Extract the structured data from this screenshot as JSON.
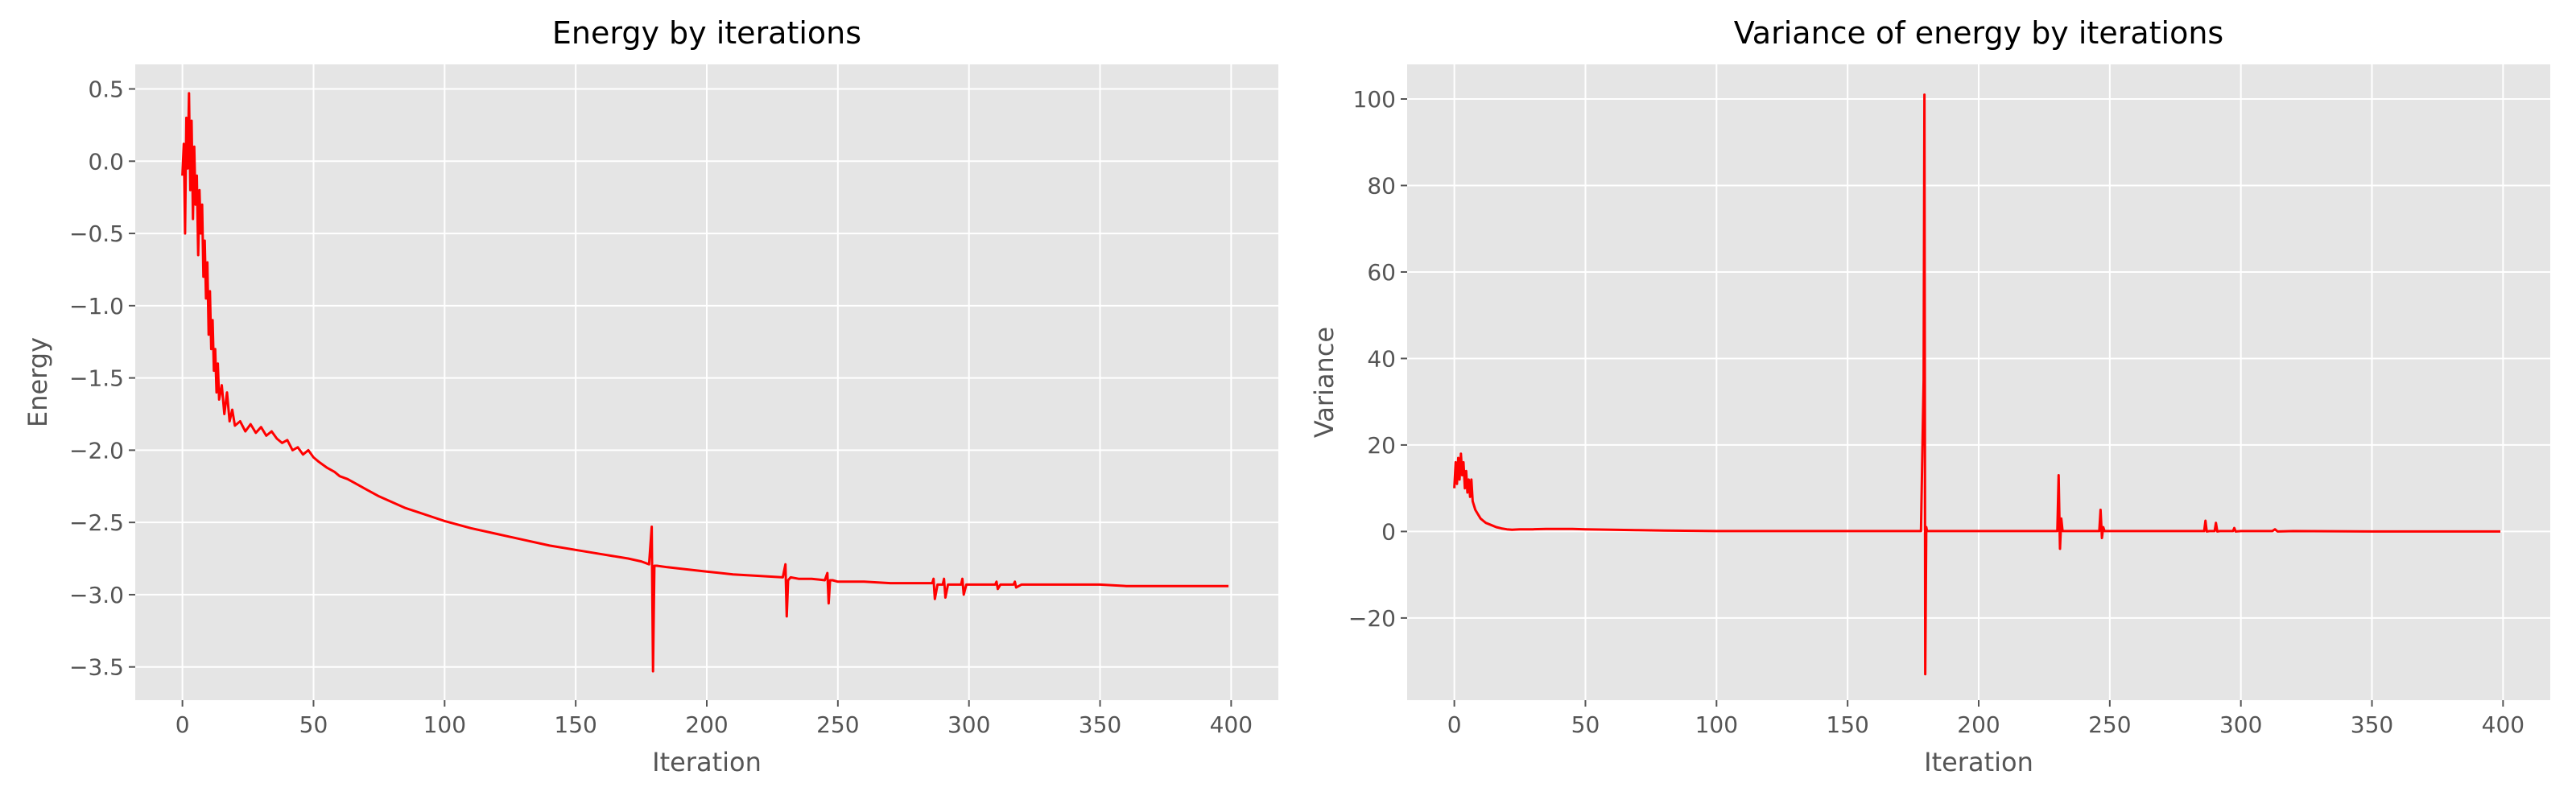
{
  "chart_data": [
    {
      "type": "line",
      "title": "Energy by iterations",
      "xlabel": "Iteration",
      "ylabel": "Energy",
      "xlim": [
        -18,
        418
      ],
      "ylim": [
        -3.73,
        0.67
      ],
      "xticks": [
        0,
        50,
        100,
        150,
        200,
        250,
        300,
        350,
        400
      ],
      "yticks": [
        -3.5,
        -3.0,
        -2.5,
        -2.0,
        -1.5,
        -1.0,
        -0.5,
        0.0,
        0.5
      ],
      "ytick_labels": [
        "−3.5",
        "−3.0",
        "−2.5",
        "−2.0",
        "−1.5",
        "−1.0",
        "−0.5",
        "0.0",
        "0.5"
      ],
      "grid": true,
      "series_color": "#ff0000",
      "series": [
        {
          "x": [
            0,
            0.5,
            1,
            1.5,
            2,
            2.5,
            3,
            3.5,
            4,
            4.5,
            5,
            5.5,
            6,
            6.5,
            7,
            7.5,
            8,
            8.5,
            9,
            9.5,
            10,
            10.5,
            11,
            11.5,
            12,
            12.5,
            13,
            13.5,
            14,
            15,
            16,
            17,
            18,
            19,
            20,
            22,
            24,
            26,
            28,
            30,
            32,
            34,
            36,
            38,
            40,
            42,
            44,
            46,
            48,
            50,
            52,
            55,
            58,
            60,
            63,
            66,
            70,
            75,
            80,
            85,
            90,
            95,
            100,
            110,
            120,
            130,
            140,
            150,
            160,
            170,
            175,
            178,
            179,
            179.5,
            180,
            181,
            185,
            190,
            200,
            210,
            220,
            229,
            230,
            230.5,
            231,
            232,
            235,
            240,
            245,
            246,
            246.5,
            247,
            248,
            250,
            260,
            270,
            280,
            286,
            286.5,
            287,
            288,
            290,
            290.5,
            291,
            292,
            297,
            297.5,
            298,
            299,
            300,
            310,
            310.5,
            311,
            312,
            317,
            317.5,
            318,
            320,
            330,
            340,
            350,
            360,
            370,
            380,
            390,
            399
          ],
          "y": [
            -0.1,
            0.12,
            -0.5,
            0.3,
            -0.05,
            0.47,
            -0.2,
            0.28,
            -0.4,
            0.1,
            -0.3,
            -0.1,
            -0.65,
            -0.2,
            -0.5,
            -0.3,
            -0.8,
            -0.55,
            -0.95,
            -0.7,
            -1.2,
            -0.9,
            -1.3,
            -1.1,
            -1.45,
            -1.3,
            -1.6,
            -1.4,
            -1.65,
            -1.55,
            -1.75,
            -1.6,
            -1.8,
            -1.72,
            -1.83,
            -1.8,
            -1.87,
            -1.82,
            -1.88,
            -1.84,
            -1.9,
            -1.87,
            -1.92,
            -1.95,
            -1.93,
            -2.0,
            -1.98,
            -2.03,
            -2.0,
            -2.05,
            -2.08,
            -2.12,
            -2.15,
            -2.18,
            -2.2,
            -2.23,
            -2.27,
            -2.32,
            -2.36,
            -2.4,
            -2.43,
            -2.46,
            -2.49,
            -2.54,
            -2.58,
            -2.62,
            -2.66,
            -2.69,
            -2.72,
            -2.75,
            -2.77,
            -2.79,
            -2.53,
            -3.53,
            -2.8,
            -2.8,
            -2.81,
            -2.82,
            -2.84,
            -2.86,
            -2.87,
            -2.88,
            -2.79,
            -3.15,
            -2.9,
            -2.88,
            -2.89,
            -2.89,
            -2.9,
            -2.85,
            -3.06,
            -2.9,
            -2.9,
            -2.91,
            -2.91,
            -2.92,
            -2.92,
            -2.92,
            -2.89,
            -3.03,
            -2.93,
            -2.93,
            -2.89,
            -3.02,
            -2.93,
            -2.93,
            -2.89,
            -3.0,
            -2.93,
            -2.93,
            -2.93,
            -2.91,
            -2.96,
            -2.93,
            -2.93,
            -2.91,
            -2.95,
            -2.93,
            -2.93,
            -2.93,
            -2.93,
            -2.94,
            -2.94,
            -2.94,
            -2.94,
            -2.94
          ]
        }
      ]
    },
    {
      "type": "line",
      "title": "Variance of energy by iterations",
      "xlabel": "Iteration",
      "ylabel": "Variance",
      "xlim": [
        -18,
        418
      ],
      "ylim": [
        -39,
        108
      ],
      "xticks": [
        0,
        50,
        100,
        150,
        200,
        250,
        300,
        350,
        400
      ],
      "yticks": [
        -20,
        0,
        20,
        40,
        60,
        80,
        100
      ],
      "ytick_labels": [
        "−20",
        "0",
        "20",
        "40",
        "60",
        "80",
        "100"
      ],
      "grid": true,
      "series_color": "#ff0000",
      "series": [
        {
          "x": [
            0,
            0.5,
            1,
            1.5,
            2,
            2.5,
            3,
            3.5,
            4,
            4.5,
            5,
            5.5,
            6,
            6.5,
            7,
            8,
            9,
            10,
            11,
            12,
            14,
            16,
            18,
            20,
            22,
            25,
            30,
            35,
            40,
            45,
            50,
            60,
            70,
            80,
            100,
            150,
            178,
            179,
            179.3,
            179.6,
            180,
            180.3,
            181,
            185,
            229,
            230,
            230.5,
            231,
            231.5,
            232,
            240,
            246,
            246.5,
            247,
            247.5,
            248,
            260,
            286,
            286.5,
            287,
            288,
            290,
            290.5,
            291,
            292,
            297,
            297.5,
            298,
            300,
            312,
            313,
            314,
            320,
            350,
            399
          ],
          "y": [
            10,
            16,
            11,
            17,
            12,
            18,
            13,
            16,
            10,
            14,
            9,
            12,
            8,
            12,
            7,
            5,
            4,
            3,
            2.5,
            2,
            1.5,
            1,
            0.7,
            0.5,
            0.4,
            0.5,
            0.5,
            0.6,
            0.6,
            0.6,
            0.5,
            0.4,
            0.3,
            0.2,
            0.1,
            0.1,
            0.1,
            35,
            101,
            -33,
            1,
            0.1,
            0.1,
            0.1,
            0.1,
            0.1,
            13,
            -4,
            3,
            0.1,
            0.1,
            0.1,
            5,
            -1.5,
            1,
            0.1,
            0.1,
            0.1,
            2.5,
            0,
            0.1,
            0.1,
            2,
            0,
            0.1,
            0.1,
            0.8,
            0,
            0.1,
            0.1,
            0.5,
            0,
            0.1,
            0,
            0
          ]
        }
      ]
    }
  ]
}
